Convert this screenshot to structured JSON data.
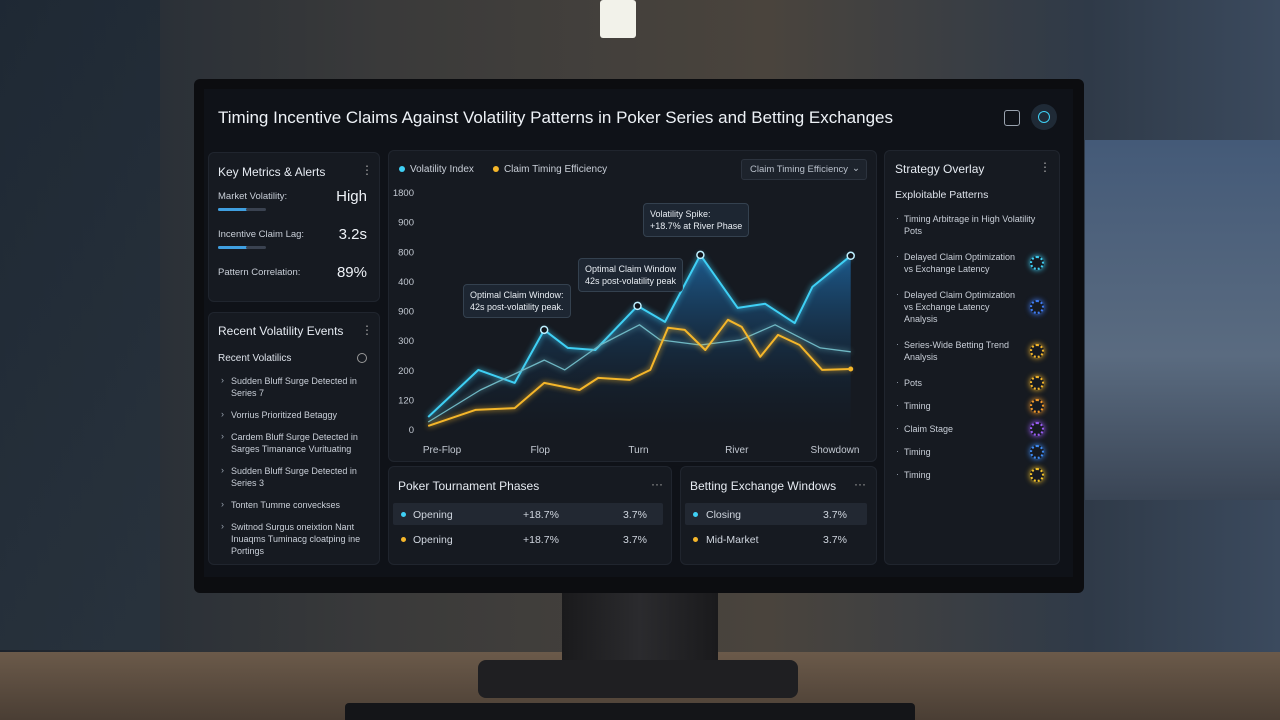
{
  "header": {
    "title": "Timing Incentive Claims Against Volatility Patterns in Poker Series and Betting Exchanges"
  },
  "metrics": {
    "title": "Key Metrics & Alerts",
    "items": [
      {
        "label": "Market Volatility:",
        "value": "High"
      },
      {
        "label": "Incentive Claim Lag:",
        "value": "3.2s"
      },
      {
        "label": "Pattern Correlation:",
        "value": "89%"
      }
    ]
  },
  "events": {
    "title": "Recent Volatility Events",
    "subtitle": "Recent Volatilics",
    "items": [
      "Sudden Bluff Surge Detected in Series 7",
      "Vorrius Prioritized Betaggy",
      "Cardem Bluff Surge Detected in Sarges Timanance Vurituating",
      "Sudden Bluff Surge Detected in Series 3",
      "Tonten Tumme conveckses",
      "Switnod Surgus oneixtion Nant Inuaqms Tuminacg cloatping ine Portings"
    ]
  },
  "chart_data": {
    "type": "line",
    "dropdown": "Claim Timing Efficiency",
    "xlim": [
      -0.2,
      4.2
    ],
    "xticks": [
      {
        "value": 0,
        "label": "Pre-Flop"
      },
      {
        "value": 1,
        "label": "Flop"
      },
      {
        "value": 2,
        "label": "Turn"
      },
      {
        "value": 3,
        "label": "River"
      },
      {
        "value": 4,
        "label": "Showdown"
      }
    ],
    "ylim": [
      0,
      8
    ],
    "yticks": [
      {
        "value": 0,
        "label": "0"
      },
      {
        "value": 1,
        "label": "120"
      },
      {
        "value": 2,
        "label": "200"
      },
      {
        "value": 3,
        "label": "300"
      },
      {
        "value": 4,
        "label": "900"
      },
      {
        "value": 5,
        "label": "400"
      },
      {
        "value": 6,
        "label": "800"
      },
      {
        "value": 7,
        "label": "900"
      },
      {
        "value": 8,
        "label": "1800"
      }
    ],
    "grid": false,
    "series": [
      {
        "name": "Volatility Index",
        "color": "#3fd0f5",
        "area": true,
        "x": [
          -0.14,
          0.37,
          0.74,
          1.04,
          1.28,
          1.56,
          1.99,
          2.27,
          2.63,
          3.01,
          3.29,
          3.59,
          3.77,
          4.16
        ],
        "values": [
          0.44,
          2.03,
          1.59,
          3.38,
          2.77,
          2.7,
          4.19,
          3.65,
          5.91,
          4.12,
          4.26,
          3.61,
          4.83,
          5.88
        ]
      },
      {
        "name": null,
        "color": "#6fb8c4",
        "area": false,
        "x": [
          -0.14,
          0.39,
          1.04,
          1.25,
          1.61,
          2.01,
          2.22,
          2.63,
          3.04,
          3.39,
          3.85,
          4.16
        ],
        "values": [
          0.27,
          1.35,
          2.36,
          2.03,
          2.87,
          3.55,
          3.04,
          2.87,
          3.04,
          3.55,
          2.77,
          2.64
        ]
      },
      {
        "name": "Claim Timing Efficiency",
        "color": "#f5b62a",
        "area": false,
        "x": [
          -0.14,
          0.34,
          0.74,
          1.04,
          1.4,
          1.59,
          1.91,
          2.12,
          2.3,
          2.47,
          2.68,
          2.91,
          3.05,
          3.24,
          3.42,
          3.64,
          3.87,
          4.16
        ],
        "values": [
          0.14,
          0.68,
          0.74,
          1.59,
          1.35,
          1.76,
          1.69,
          2.03,
          3.45,
          3.38,
          2.7,
          3.72,
          3.48,
          2.47,
          3.21,
          2.87,
          2.03,
          2.06
        ]
      }
    ],
    "annotations": [
      {
        "lines": [
          "Optimal Claim Window:",
          "42s post-volatility peak."
        ]
      },
      {
        "lines": [
          "Optimal Claim Window",
          "42s post-volatility peak"
        ]
      },
      {
        "lines": [
          "Volatility Spike:",
          "+18.7% at River Phase"
        ]
      }
    ]
  },
  "phases": {
    "title": "Poker Tournament Phases",
    "rows": [
      {
        "dot": "#3fd0f5",
        "cells": [
          "Opening",
          "+18.7%",
          "3.7%"
        ]
      },
      {
        "dot": "#f5b62a",
        "cells": [
          "Opening",
          "+18.7%",
          "3.7%"
        ]
      }
    ]
  },
  "windows": {
    "title": "Betting Exchange Windows",
    "rows": [
      {
        "dot": "#3fd0f5",
        "cells": [
          "Closing",
          "3.7%"
        ]
      },
      {
        "dot": "#f5b62a",
        "cells": [
          "Mid-Market",
          "3.7%"
        ]
      }
    ]
  },
  "strategy": {
    "title": "Strategy Overlay",
    "subtitle": "Exploitable Patterns",
    "items": [
      {
        "text": "Timing Arbitrage in High Volatility Pots",
        "icon": null
      },
      {
        "text": "Delayed Claim Optimization vs Exchange Latency",
        "icon": "#3fd0f5"
      },
      {
        "text": "Delayed Claim Optimization vs Exchange Latency Analysis",
        "icon": "#3f7cf5"
      },
      {
        "text": "Series-Wide Betting Trend Analysis",
        "icon": "#f5b62a"
      },
      {
        "text": "Pots",
        "icon": "#f5b62a"
      },
      {
        "text": "Timing",
        "icon": "#f59a2a"
      },
      {
        "text": "Claim Stage",
        "icon": "#9a5cf5"
      },
      {
        "text": "Timing",
        "icon": "#3f8cf5"
      },
      {
        "text": "Timing",
        "icon": "#f5c42a"
      }
    ]
  }
}
